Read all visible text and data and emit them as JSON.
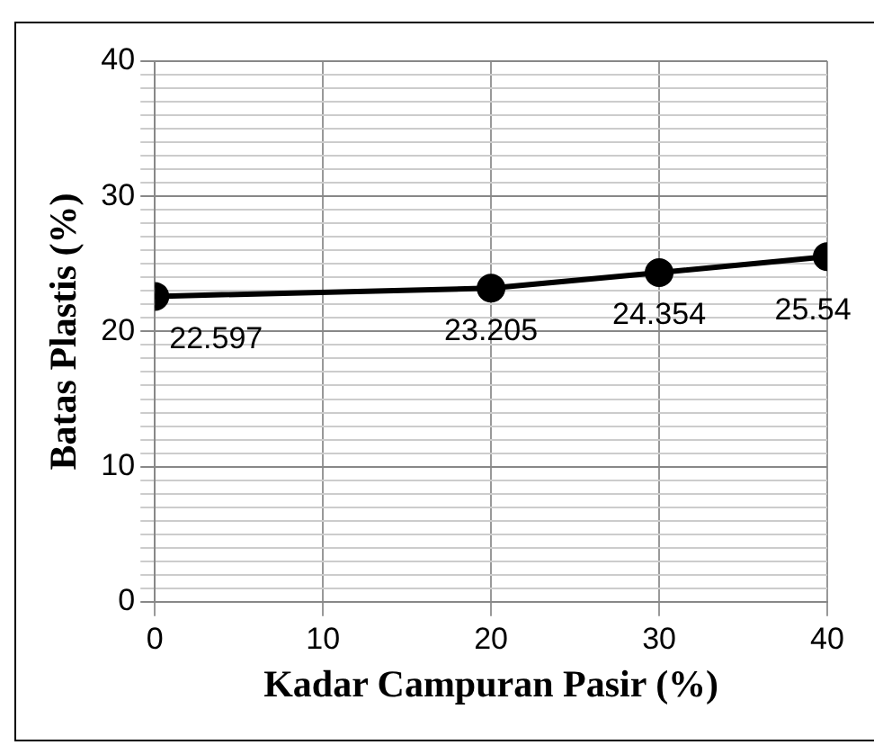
{
  "chart_data": {
    "type": "line",
    "xlabel": "Kadar Campuran Pasir (%)",
    "ylabel": "Batas Plastis (%)",
    "x": [
      0,
      20,
      30,
      40
    ],
    "series": [
      {
        "color": "#000000",
        "values": [
          22.597,
          23.205,
          24.354,
          25.54
        ]
      }
    ],
    "xlim": [
      0,
      40
    ],
    "xticks": [
      0,
      10,
      20,
      30,
      40
    ],
    "ylim": [
      0,
      40
    ],
    "yticks": [
      0,
      {
        "value": 1,
        "label": null
      },
      {
        "value": 2,
        "label": null
      },
      {
        "value": 3,
        "label": null
      },
      {
        "value": 4,
        "label": null
      },
      {
        "value": 5,
        "label": null
      },
      {
        "value": 6,
        "label": null
      },
      {
        "value": 7,
        "label": null
      },
      {
        "value": 8,
        "label": null
      },
      {
        "value": 9,
        "label": null
      },
      10,
      {
        "value": 11,
        "label": null
      },
      {
        "value": 12,
        "label": null
      },
      {
        "value": 13,
        "label": null
      },
      {
        "value": 14,
        "label": null
      },
      {
        "value": 15,
        "label": null
      },
      {
        "value": 16,
        "label": null
      },
      {
        "value": 17,
        "label": null
      },
      {
        "value": 18,
        "label": null
      },
      {
        "value": 19,
        "label": null
      },
      20,
      {
        "value": 21,
        "label": null
      },
      {
        "value": 22,
        "label": null
      },
      {
        "value": 23,
        "label": null
      },
      {
        "value": 24,
        "label": null
      },
      {
        "value": 25,
        "label": null
      },
      {
        "value": 26,
        "label": null
      },
      {
        "value": 27,
        "label": null
      },
      {
        "value": 28,
        "label": null
      },
      {
        "value": 29,
        "label": null
      },
      30,
      {
        "value": 31,
        "label": null
      },
      {
        "value": 32,
        "label": null
      },
      {
        "value": 33,
        "label": null
      },
      {
        "value": 34,
        "label": null
      },
      {
        "value": 35,
        "label": null
      },
      {
        "value": 36,
        "label": null
      },
      {
        "value": 37,
        "label": null
      },
      {
        "value": 38,
        "label": null
      },
      {
        "value": 39,
        "label": null
      },
      40
    ],
    "grid": true,
    "legend": false,
    "marker": "circle",
    "line_style": "solid",
    "data_labels": true
  }
}
